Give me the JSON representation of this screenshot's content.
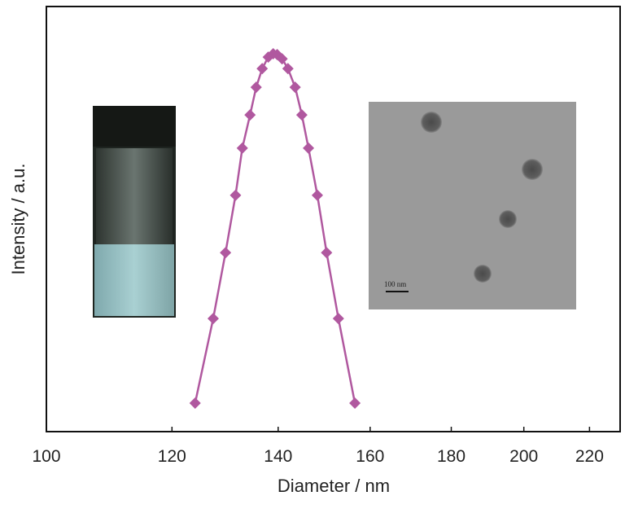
{
  "chart_data": {
    "type": "line",
    "x_label": "Diameter / nm",
    "y_label": "Intensity / a.u.",
    "inset_scale_label": "100 nm",
    "xlim": [
      100,
      230
    ],
    "xticks": [
      100,
      120,
      140,
      160,
      180,
      200,
      220
    ],
    "xlog": true,
    "ylim": [
      0,
      100
    ],
    "series": [
      {
        "color": "#b0589f",
        "x": [
          124.1,
          127.4,
          129.7,
          131.6,
          132.9,
          134.4,
          135.6,
          136.8,
          138.0,
          139.0,
          139.8,
          140.8,
          142.0,
          143.5,
          144.9,
          146.3,
          148.2,
          150.2,
          152.8,
          156.5
        ],
        "values": [
          6.7,
          26.6,
          42.1,
          55.6,
          66.7,
          74.5,
          81.0,
          85.4,
          88.1,
          88.9,
          88.7,
          87.7,
          85.4,
          81.0,
          74.5,
          66.7,
          55.6,
          42.1,
          26.6,
          6.7
        ]
      }
    ]
  }
}
